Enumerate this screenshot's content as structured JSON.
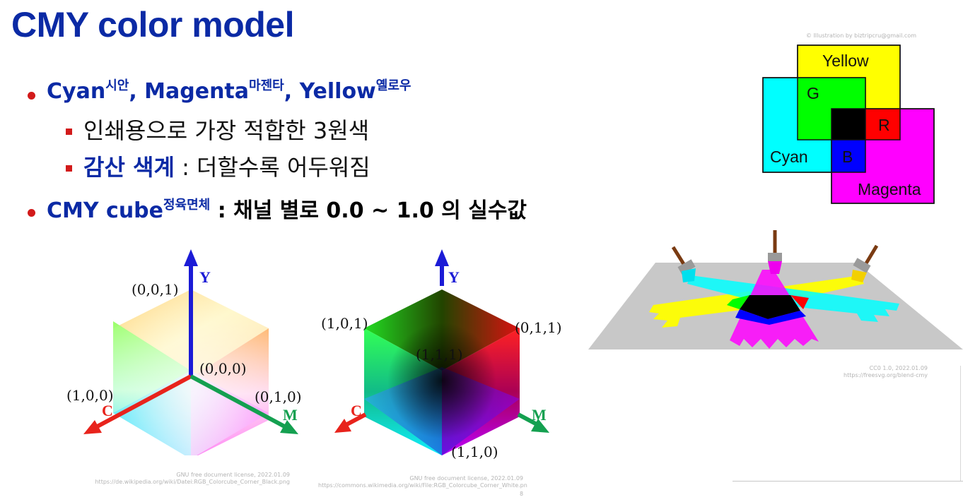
{
  "title": "CMY color model",
  "bullets": {
    "b1": {
      "cyan": "Cyan",
      "cyan_ko": "시안",
      "comma1": ", ",
      "magenta": "Magenta",
      "magenta_ko": "마젠타",
      "comma2": ", ",
      "yellow": "Yellow",
      "yellow_ko": "옐로우"
    },
    "b1_1": "인쇄용으로 가장 적합한 3원색",
    "b1_2": {
      "highlight": "감산 색계",
      "rest": " : 더할수록 어두워짐"
    },
    "b2": {
      "term": "CMY cube",
      "term_ko": "정육면체",
      "rest": " : 채널 별로 0.0 ~ 1.0 의 실수값"
    }
  },
  "venn": {
    "credit": "© Illustration by biztripcru@gmail.com",
    "labels": {
      "yellow": "Yellow",
      "cyan": "Cyan",
      "magenta": "Magenta",
      "g": "G",
      "r": "R",
      "b": "B"
    },
    "colors": {
      "cyan": "#00ffff",
      "magenta": "#ff00ff",
      "yellow": "#ffff00",
      "green": "#00ff00",
      "red": "#ff0000",
      "blue": "#0000ff",
      "black": "#000000"
    }
  },
  "cube_black": {
    "labels": {
      "p001": "(0,0,1)",
      "p000": "(0,0,0)",
      "p100": "(1,0,0)",
      "p010": "(0,1,0)"
    },
    "axes": {
      "y": "Y",
      "c": "C",
      "m": "M"
    },
    "credit1": "GNU free document license, 2022.01.09",
    "credit2": "https://de.wikipedia.org/wiki/Datei:RGB_Colorcube_Corner_Black.png"
  },
  "cube_white": {
    "labels": {
      "p101": "(1,0,1)",
      "p011": "(0,1,1)",
      "p111": "(1,1,1)",
      "p110": "(1,1,0)"
    },
    "axes": {
      "y": "Y",
      "c": "C",
      "m": "M"
    },
    "credit1": "GNU free document license, 2022.01.09",
    "credit2": "https://commons.wikimedia.org/wiki/File:RGB_Colorcube_Corner_White.pn"
  },
  "brush": {
    "credit1": "CC0 1.0, 2022.01.09",
    "credit2": "https://freesvg.org/blend-cmy"
  },
  "page_number": "8",
  "axis_colors": {
    "y": "#1b1bd6",
    "c": "#e8231c",
    "m": "#14a050"
  }
}
